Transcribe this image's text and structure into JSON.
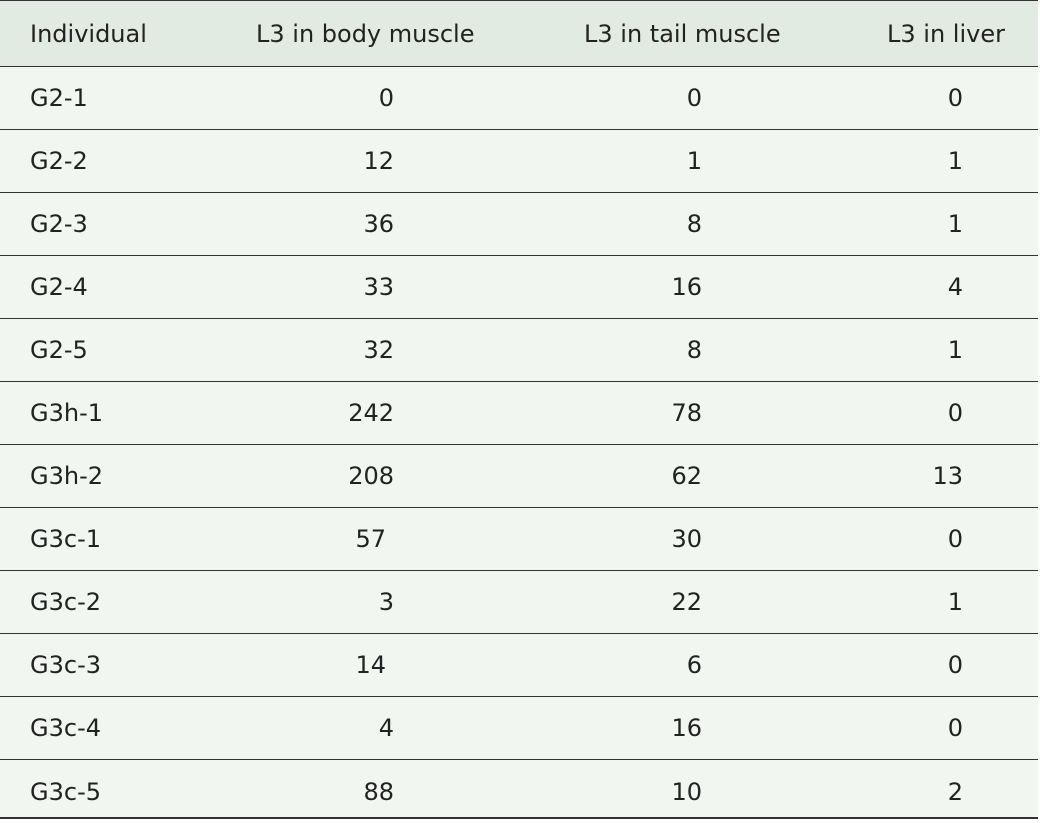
{
  "table": {
    "headers": [
      "Individual",
      "L3 in body muscle",
      "L3 in tail muscle",
      "L3 in liver"
    ],
    "rows": [
      [
        "G2-1",
        "0",
        "0",
        "0"
      ],
      [
        "G2-2",
        "12",
        "1",
        "1"
      ],
      [
        "G2-3",
        "36",
        "8",
        "1"
      ],
      [
        "G2-4",
        "33",
        "16",
        "4"
      ],
      [
        "G2-5",
        "32",
        "8",
        "1"
      ],
      [
        "G3h-1",
        "242",
        "78",
        "0"
      ],
      [
        "G3h-2",
        "208",
        "62",
        "13"
      ],
      [
        "G3c-1",
        "57",
        "30",
        "0"
      ],
      [
        "G3c-2",
        "3",
        "22",
        "1"
      ],
      [
        "G3c-3",
        "14",
        "6",
        "0"
      ],
      [
        "G3c-4",
        "4",
        "16",
        "0"
      ],
      [
        "G3c-5",
        "88",
        "10",
        "2"
      ]
    ]
  }
}
